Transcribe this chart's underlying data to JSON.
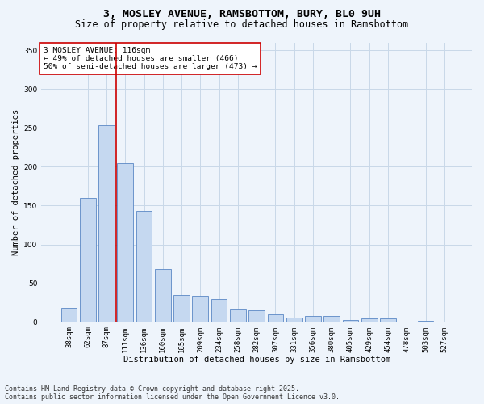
{
  "title_line1": "3, MOSLEY AVENUE, RAMSBOTTOM, BURY, BL0 9UH",
  "title_line2": "Size of property relative to detached houses in Ramsbottom",
  "xlabel": "Distribution of detached houses by size in Ramsbottom",
  "ylabel": "Number of detached properties",
  "categories": [
    "38sqm",
    "62sqm",
    "87sqm",
    "111sqm",
    "136sqm",
    "160sqm",
    "185sqm",
    "209sqm",
    "234sqm",
    "258sqm",
    "282sqm",
    "307sqm",
    "331sqm",
    "356sqm",
    "380sqm",
    "405sqm",
    "429sqm",
    "454sqm",
    "478sqm",
    "503sqm",
    "527sqm"
  ],
  "values": [
    18,
    160,
    253,
    205,
    143,
    68,
    35,
    34,
    30,
    16,
    15,
    10,
    6,
    8,
    8,
    3,
    5,
    5,
    0,
    2,
    1
  ],
  "bar_color": "#c5d8f0",
  "bar_edge_color": "#5a87c5",
  "grid_color": "#c8d8e8",
  "background_color": "#eef4fb",
  "vline_x_index": 3,
  "vline_color": "#cc0000",
  "annotation_text": "3 MOSLEY AVENUE: 116sqm\n← 49% of detached houses are smaller (466)\n50% of semi-detached houses are larger (473) →",
  "annotation_box_color": "#ffffff",
  "annotation_box_edge": "#cc0000",
  "ylim": [
    0,
    360
  ],
  "yticks": [
    0,
    50,
    100,
    150,
    200,
    250,
    300,
    350
  ],
  "footer_line1": "Contains HM Land Registry data © Crown copyright and database right 2025.",
  "footer_line2": "Contains public sector information licensed under the Open Government Licence v3.0.",
  "title_fontsize": 9.5,
  "subtitle_fontsize": 8.5,
  "axis_label_fontsize": 7.5,
  "tick_fontsize": 6.5,
  "annotation_fontsize": 6.8,
  "footer_fontsize": 6.0,
  "ylabel_fontsize": 7.5
}
